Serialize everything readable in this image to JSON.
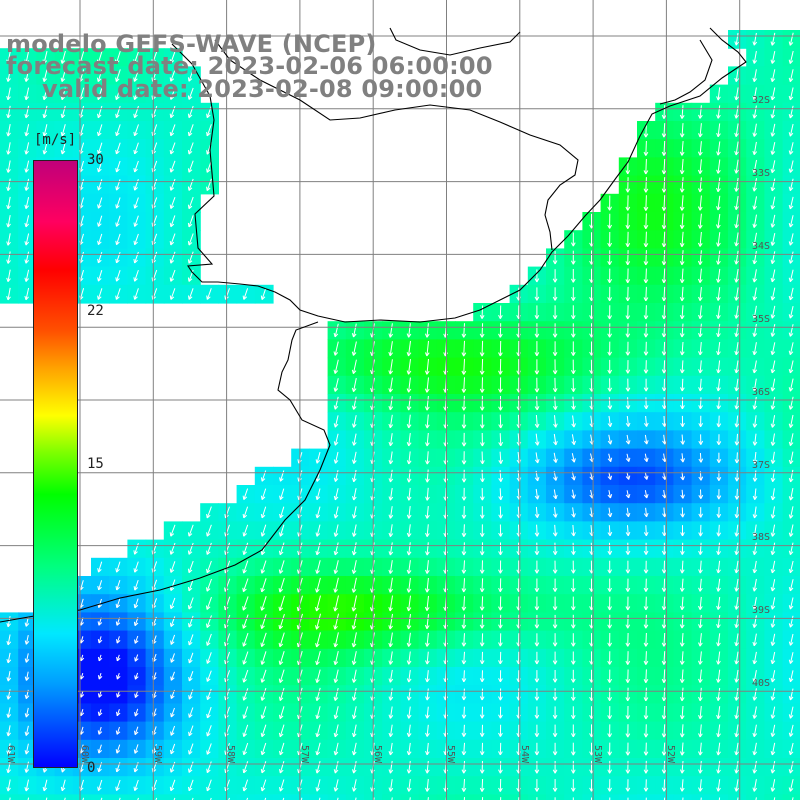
{
  "title": {
    "model": "modelo GEFS-WAVE (NCEP)",
    "forecast": "forecast date: 2023-02-06 06:00:00",
    "valid": "valid date: 2023-02-08 09:00:00"
  },
  "colorbar": {
    "unit": "[m/s]",
    "ticks": [
      "30",
      "22",
      "15"
    ],
    "bottom_tick": "0",
    "colors": [
      "#0000ff",
      "#00a0ff",
      "#00e8ff",
      "#00ff80",
      "#00ff00",
      "#80ff00",
      "#ffff00",
      "#ffa000",
      "#ff0000",
      "#c0007a"
    ]
  },
  "lat_labels": [
    "32S",
    "33S",
    "34S",
    "35S",
    "36S",
    "37S",
    "38S",
    "39S",
    "40S"
  ],
  "lon_labels": [
    "61W",
    "60W",
    "59W",
    "58W",
    "57W",
    "56W",
    "55W",
    "54W",
    "53W",
    "52W"
  ],
  "field": {
    "land_color": "#ffffff",
    "arrow_color": "#ffffff",
    "graticule_color": "#808080",
    "coast_color": "#000000"
  }
}
